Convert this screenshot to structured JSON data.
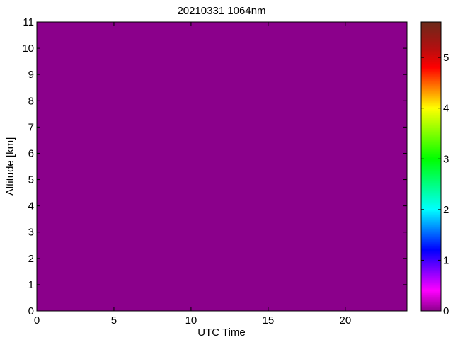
{
  "chart_data": {
    "type": "heatmap",
    "title": "20210331 1064nm",
    "xlabel": "UTC Time",
    "ylabel": "Altitude [km]",
    "xlim": [
      0,
      24
    ],
    "ylim": [
      0,
      11
    ],
    "xticks": [
      "0",
      "5",
      "10",
      "15",
      "20"
    ],
    "yticks": [
      "0",
      "1",
      "2",
      "3",
      "4",
      "5",
      "6",
      "7",
      "8",
      "9",
      "10",
      "11"
    ],
    "values_description": "uniform field",
    "value": 0,
    "grid": false,
    "colorbar": {
      "placement": "right",
      "range": [
        0,
        5.7
      ],
      "ticks": [
        "0",
        "1",
        "2",
        "3",
        "4",
        "5"
      ],
      "colormap": [
        {
          "v": 0,
          "color": "#8b008b"
        },
        {
          "v": 0.4,
          "color": "#ff00ff"
        },
        {
          "v": 1.2,
          "color": "#0000ff"
        },
        {
          "v": 2.0,
          "color": "#00ffff"
        },
        {
          "v": 3.0,
          "color": "#00ff00"
        },
        {
          "v": 4.0,
          "color": "#ffff00"
        },
        {
          "v": 4.8,
          "color": "#ff0000"
        },
        {
          "v": 5.2,
          "color": "#b01010"
        },
        {
          "v": 5.7,
          "color": "#6b2a1a"
        }
      ]
    }
  }
}
